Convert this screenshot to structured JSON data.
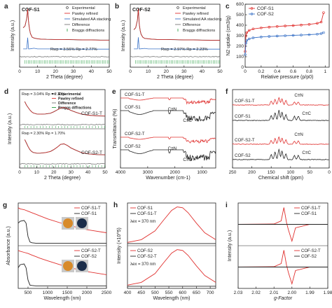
{
  "colors": {
    "red": "#e0312f",
    "black": "#222222",
    "blue": "#3b73c7",
    "green": "#1e9a3a",
    "gray": "#777777",
    "pink": "#e8566a",
    "lightblue": "#2f7fd0",
    "orange": "#d88a2a",
    "navy": "#1b2d4a"
  },
  "chart_data": [
    {
      "panel": "a",
      "type": "line",
      "series_label": "COF-S1",
      "legend": [
        "Experimental",
        "Pawley refined",
        "Simulated AA stacking",
        "Difference",
        "Braggs diffractions"
      ],
      "annotation": "Rwp = 3.56% Rp = 2.77%",
      "xlabel": "2 Theta (degree)",
      "ylabel": "Intensity (a.u.)",
      "xlim": [
        0,
        50
      ],
      "xticks": [
        0,
        10,
        20,
        30,
        40,
        50
      ],
      "experimental": {
        "x": [
          2,
          3,
          4,
          4.5,
          5,
          5.5,
          6,
          7,
          8,
          10,
          12,
          15,
          20,
          25,
          30,
          35,
          40,
          45,
          50
        ],
        "y": [
          0.45,
          0.5,
          0.7,
          0.95,
          0.6,
          0.42,
          0.3,
          0.2,
          0.18,
          0.16,
          0.15,
          0.145,
          0.14,
          0.14,
          0.135,
          0.13,
          0.13,
          0.125,
          0.125
        ]
      },
      "simulated": {
        "x": [
          2,
          4,
          4.5,
          5,
          6,
          8,
          10,
          12,
          15,
          20,
          25,
          30,
          40,
          50
        ],
        "y": [
          0.08,
          0.08,
          0.7,
          0.08,
          0.09,
          0.12,
          0.08,
          0.08,
          0.08,
          0.08,
          0.07,
          0.07,
          0.07,
          0.07
        ]
      }
    },
    {
      "panel": "b",
      "type": "line",
      "series_label": "COF-S2",
      "legend": [
        "Experimental",
        "Pawley refined",
        "Simulated AA stacking",
        "Difference",
        "Braggs diffractions"
      ],
      "annotation": "Rwp = 2.97% Rp = 2.23%",
      "xlabel": "2 Theta (degree)",
      "ylabel": "Intensity (a.u.)",
      "xlim": [
        0,
        50
      ],
      "xticks": [
        0,
        10,
        20,
        30,
        40,
        50
      ],
      "experimental": {
        "x": [
          2,
          3,
          4,
          4.5,
          5,
          5.5,
          6,
          7,
          8,
          10,
          12,
          15,
          20,
          25,
          30,
          35,
          40,
          45,
          50
        ],
        "y": [
          0.4,
          0.45,
          0.65,
          0.95,
          0.55,
          0.38,
          0.28,
          0.2,
          0.17,
          0.16,
          0.15,
          0.14,
          0.14,
          0.135,
          0.13,
          0.13,
          0.125,
          0.12,
          0.12
        ]
      },
      "simulated": {
        "x": [
          2,
          4,
          4.5,
          5,
          6,
          8,
          10,
          12,
          15,
          20,
          25,
          30,
          40,
          50
        ],
        "y": [
          0.08,
          0.08,
          0.72,
          0.08,
          0.09,
          0.11,
          0.08,
          0.08,
          0.08,
          0.08,
          0.07,
          0.07,
          0.07,
          0.07
        ]
      }
    },
    {
      "panel": "c",
      "type": "line",
      "xlabel": "Relative pressure (p/p0)",
      "ylabel": "N2 uptake (cm3/g)",
      "xlim": [
        0,
        1.05
      ],
      "ylim": [
        0,
        600
      ],
      "xticks": [
        0,
        0.2,
        0.4,
        0.6,
        0.8,
        1.0
      ],
      "yticks": [
        0,
        100,
        200,
        300,
        400,
        500,
        600
      ],
      "series": [
        {
          "name": "COF-S1",
          "color": "red",
          "x": [
            0,
            0.01,
            0.02,
            0.05,
            0.1,
            0.2,
            0.3,
            0.4,
            0.5,
            0.6,
            0.7,
            0.8,
            0.9,
            0.95,
            0.98
          ],
          "y": [
            150,
            300,
            330,
            350,
            365,
            375,
            382,
            388,
            393,
            397,
            402,
            408,
            418,
            430,
            520
          ]
        },
        {
          "name": "COF-S2",
          "color": "blue",
          "x": [
            0,
            0.01,
            0.02,
            0.05,
            0.1,
            0.2,
            0.3,
            0.4,
            0.5,
            0.6,
            0.7,
            0.8,
            0.9,
            0.95,
            0.98
          ],
          "y": [
            120,
            230,
            255,
            270,
            280,
            288,
            293,
            297,
            300,
            303,
            306,
            310,
            315,
            320,
            330
          ]
        }
      ]
    },
    {
      "panel": "d",
      "type": "line",
      "legend": [
        "Experimental",
        "Pawley refined",
        "Difference",
        "Braggs diffractions"
      ],
      "xlabel": "2 Theta (degree)",
      "ylabel": "Intensity (a.u.)",
      "xlim": [
        0,
        50
      ],
      "xticks": [
        0,
        10,
        20,
        30,
        40,
        50
      ],
      "subplots": [
        {
          "label": "COF-S1-T",
          "annotation": "Rwp = 3.04% Rp = 2.30%",
          "x": [
            3,
            4,
            5,
            6,
            7,
            8,
            10,
            12,
            15,
            18,
            20,
            22,
            24,
            26,
            28,
            30,
            33,
            36,
            40,
            45,
            50
          ],
          "y": [
            0.85,
            0.7,
            0.6,
            0.5,
            0.42,
            0.37,
            0.33,
            0.32,
            0.33,
            0.36,
            0.42,
            0.5,
            0.58,
            0.6,
            0.55,
            0.48,
            0.4,
            0.33,
            0.28,
            0.25,
            0.24
          ]
        },
        {
          "label": "COF-S2-T",
          "annotation": "Rwp = 2.30% Rp = 1.70%",
          "x": [
            3,
            4,
            5,
            6,
            7,
            8,
            10,
            12,
            15,
            18,
            20,
            22,
            24,
            26,
            28,
            30,
            33,
            36,
            40,
            45,
            50
          ],
          "y": [
            0.9,
            0.75,
            0.6,
            0.48,
            0.4,
            0.36,
            0.33,
            0.33,
            0.35,
            0.4,
            0.48,
            0.58,
            0.7,
            0.72,
            0.65,
            0.55,
            0.45,
            0.36,
            0.3,
            0.27,
            0.26
          ]
        }
      ]
    },
    {
      "panel": "e",
      "type": "line",
      "xlabel": "Wavenumber (cm-1)",
      "ylabel": "Transmittance (%)",
      "xlim": [
        4000,
        500
      ],
      "xticks": [
        4000,
        3000,
        2000,
        1000
      ],
      "groups": [
        {
          "series": [
            {
              "name": "COF-S1-T",
              "color": "red"
            },
            {
              "name": "COF-S1",
              "color": "black"
            }
          ],
          "annotations": [
            "C≡N",
            "C≡C"
          ]
        },
        {
          "series": [
            {
              "name": "COF-S2-T",
              "color": "red"
            },
            {
              "name": "COF-S2",
              "color": "black"
            }
          ],
          "annotations": [
            "C≡N",
            "C≡C"
          ]
        }
      ]
    },
    {
      "panel": "f",
      "type": "line",
      "xlabel": "Chemical shift (ppm)",
      "xlim": [
        250,
        0
      ],
      "xticks": [
        250,
        200,
        150,
        100,
        50,
        0
      ],
      "groups": [
        {
          "series": [
            {
              "name": "COF-S1-T",
              "color": "red"
            },
            {
              "name": "COF-S1",
              "color": "black"
            }
          ],
          "annotations": [
            "C≡N",
            "C≡C"
          ]
        },
        {
          "series": [
            {
              "name": "COF-S2-T",
              "color": "red"
            },
            {
              "name": "COF-S2",
              "color": "black"
            }
          ],
          "annotations": [
            "C≡N",
            "C≡C"
          ]
        }
      ]
    },
    {
      "panel": "g",
      "type": "line",
      "xlabel": "Wavelength (nm)",
      "ylabel": "Absorbance (a.u.)",
      "xlim": [
        250,
        2500
      ],
      "xticks": [
        500,
        1000,
        1500,
        2000,
        2500
      ],
      "groups": [
        {
          "series": [
            {
              "name": "COF-S1-T",
              "color": "red",
              "x": [
                250,
                300,
                400,
                500,
                600,
                700,
                800,
                1000,
                1500,
                2000,
                2500
              ],
              "y": [
                0.95,
                0.92,
                0.9,
                0.86,
                0.82,
                0.78,
                0.74,
                0.66,
                0.5,
                0.38,
                0.3
              ]
            },
            {
              "name": "COF-S1",
              "color": "black",
              "x": [
                250,
                300,
                400,
                450,
                500,
                550,
                600,
                700,
                1000,
                1500,
                2000,
                2500
              ],
              "y": [
                0.55,
                0.6,
                0.62,
                0.55,
                0.2,
                0.06,
                0.04,
                0.03,
                0.03,
                0.03,
                0.03,
                0.03
              ]
            }
          ]
        },
        {
          "series": [
            {
              "name": "COF-S2-T",
              "color": "red",
              "x": [
                250,
                300,
                400,
                500,
                600,
                700,
                800,
                1000,
                1500,
                2000,
                2500
              ],
              "y": [
                0.95,
                0.93,
                0.9,
                0.87,
                0.83,
                0.79,
                0.75,
                0.68,
                0.52,
                0.4,
                0.32
              ]
            },
            {
              "name": "COF-S2",
              "color": "black",
              "x": [
                250,
                300,
                400,
                450,
                500,
                550,
                600,
                700,
                1000,
                1500,
                2000,
                2500
              ],
              "y": [
                0.5,
                0.58,
                0.6,
                0.5,
                0.18,
                0.05,
                0.04,
                0.03,
                0.03,
                0.03,
                0.03,
                0.03
              ]
            }
          ]
        }
      ]
    },
    {
      "panel": "h",
      "type": "line",
      "xlabel": "Wavelength (nm)",
      "ylabel": "Intensity (×10^5)",
      "xlim": [
        400,
        720
      ],
      "xticks": [
        400,
        450,
        500,
        550,
        600,
        650,
        700
      ],
      "groups": [
        {
          "annotation": "λex = 370 nm",
          "series": [
            {
              "name": "COF-S1",
              "color": "red",
              "x": [
                400,
                450,
                500,
                530,
                560,
                580,
                600,
                620,
                650,
                680,
                720
              ],
              "y": [
                0.05,
                0.12,
                0.35,
                0.62,
                0.88,
                0.97,
                0.95,
                0.82,
                0.55,
                0.3,
                0.12
              ]
            },
            {
              "name": "COF-S1-T",
              "color": "black",
              "x": [
                400,
                450,
                500,
                550,
                600,
                650,
                700,
                720
              ],
              "y": [
                0.02,
                0.02,
                0.02,
                0.02,
                0.02,
                0.02,
                0.02,
                0.02
              ]
            }
          ]
        },
        {
          "annotation": "λex = 370 nm",
          "series": [
            {
              "name": "COF-S2",
              "color": "red",
              "x": [
                400,
                450,
                500,
                530,
                560,
                580,
                600,
                620,
                650,
                680,
                720
              ],
              "y": [
                0.05,
                0.12,
                0.35,
                0.62,
                0.88,
                0.97,
                0.95,
                0.82,
                0.55,
                0.3,
                0.12
              ]
            },
            {
              "name": "COF-S2-T",
              "color": "black",
              "x": [
                400,
                450,
                500,
                550,
                600,
                650,
                700,
                720
              ],
              "y": [
                0.02,
                0.02,
                0.02,
                0.02,
                0.02,
                0.02,
                0.02,
                0.02
              ]
            }
          ]
        }
      ]
    },
    {
      "panel": "i",
      "type": "line",
      "xlabel": "g-Factor",
      "ylabel": "Intensity (a.u.)",
      "xlim": [
        2.03,
        1.98
      ],
      "xticks": [
        "2.03",
        "2.02",
        "2.01",
        "2.00",
        "1.99",
        "1.98"
      ],
      "groups": [
        {
          "series": [
            {
              "name": "COF-S1-T",
              "color": "red",
              "x": [
                2.03,
                2.01,
                2.006,
                2.0045,
                2.003,
                2.002,
                2.0,
                1.998,
                1.99,
                1.98
              ],
              "y": [
                0,
                0.02,
                0.2,
                0.95,
                0.1,
                -0.3,
                -0.95,
                -0.2,
                0,
                0
              ]
            },
            {
              "name": "COF-S1",
              "color": "black",
              "x": [
                2.03,
                2.0,
                1.98
              ],
              "y": [
                0,
                0,
                0
              ]
            }
          ]
        },
        {
          "series": [
            {
              "name": "COF-S2-T",
              "color": "red",
              "x": [
                2.03,
                2.01,
                2.006,
                2.0045,
                2.003,
                2.002,
                2.0,
                1.998,
                1.99,
                1.98
              ],
              "y": [
                0,
                0.02,
                0.2,
                0.95,
                0.1,
                -0.3,
                -0.95,
                -0.2,
                0,
                0
              ]
            },
            {
              "name": "COF-S2",
              "color": "black",
              "x": [
                2.03,
                2.0,
                1.98
              ],
              "y": [
                0,
                0,
                0
              ]
            }
          ]
        }
      ]
    }
  ]
}
